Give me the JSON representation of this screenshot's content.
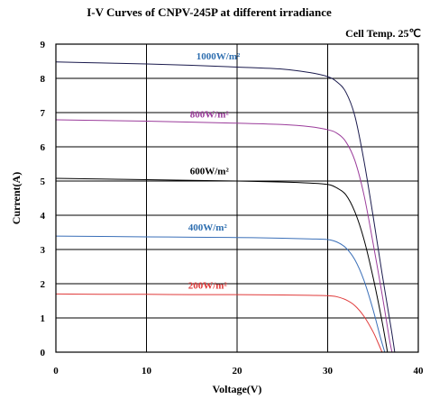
{
  "chart_data": {
    "type": "line",
    "title": "I-V Curves of CNPV-245P at different irradiance",
    "subtitle": "Cell Temp. 25℃",
    "xlabel": "Voltage(V)",
    "ylabel": "Current(A)",
    "xlim": [
      0,
      40
    ],
    "ylim": [
      0,
      9
    ],
    "xticks": [
      "0",
      "10",
      "20",
      "30",
      "40"
    ],
    "yticks": [
      "0",
      "1",
      "2",
      "3",
      "4",
      "5",
      "6",
      "7",
      "8",
      "9"
    ],
    "grid": true,
    "series": [
      {
        "name": "1000W/m²",
        "color": "#2f6fb0",
        "curve_color": "#1a1a4d",
        "x": [
          0,
          5,
          10,
          15,
          20,
          25,
          28,
          30,
          31,
          32,
          33,
          34,
          35,
          36,
          37,
          37.4
        ],
        "y": [
          8.48,
          8.45,
          8.42,
          8.38,
          8.33,
          8.27,
          8.17,
          8.05,
          7.9,
          7.6,
          6.9,
          5.6,
          4.0,
          2.3,
          0.7,
          0
        ]
      },
      {
        "name": "800W/m²",
        "color": "#9b3c9b",
        "curve_color": "#9b3c9b",
        "x": [
          0,
          5,
          10,
          15,
          20,
          25,
          28,
          30,
          31,
          32,
          33,
          34,
          35,
          36,
          36.8,
          37.1
        ],
        "y": [
          6.79,
          6.77,
          6.75,
          6.72,
          6.69,
          6.65,
          6.59,
          6.5,
          6.4,
          6.15,
          5.6,
          4.6,
          3.2,
          1.7,
          0.4,
          0
        ]
      },
      {
        "name": "600W/m²",
        "color": "#000000",
        "curve_color": "#000000",
        "x": [
          0,
          5,
          10,
          15,
          20,
          25,
          28,
          30,
          31,
          32,
          33,
          34,
          35,
          36,
          36.6
        ],
        "y": [
          5.08,
          5.06,
          5.04,
          5.02,
          5.0,
          4.97,
          4.94,
          4.9,
          4.8,
          4.6,
          4.1,
          3.3,
          2.2,
          0.9,
          0
        ]
      },
      {
        "name": "400W/m²",
        "color": "#2f6fb0",
        "curve_color": "#3a6fb8",
        "x": [
          0,
          5,
          10,
          15,
          20,
          25,
          28,
          30,
          31,
          32,
          33,
          34,
          35,
          35.8,
          36.3
        ],
        "y": [
          3.39,
          3.38,
          3.37,
          3.36,
          3.35,
          3.33,
          3.31,
          3.29,
          3.22,
          3.05,
          2.7,
          2.1,
          1.25,
          0.45,
          0
        ]
      },
      {
        "name": "200W/m²",
        "color": "#e03a3a",
        "curve_color": "#e03a3a",
        "x": [
          0,
          5,
          10,
          15,
          20,
          25,
          28,
          30,
          31,
          32,
          33,
          34,
          35,
          35.6,
          36.0
        ],
        "y": [
          1.7,
          1.69,
          1.69,
          1.68,
          1.68,
          1.67,
          1.66,
          1.65,
          1.62,
          1.53,
          1.36,
          1.05,
          0.6,
          0.25,
          0
        ]
      }
    ]
  }
}
